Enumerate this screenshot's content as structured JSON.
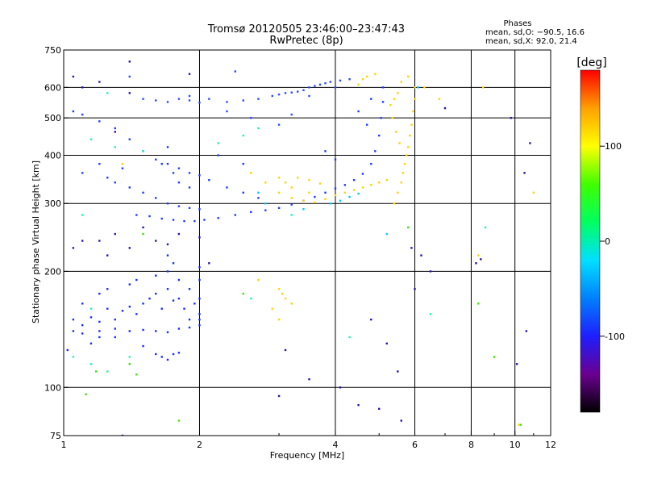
{
  "chart_data": {
    "type": "scatter",
    "title": "Tromsø 20120505 23:46:00–23:47:43",
    "subtitle": "RwPretec (8p)",
    "xlabel": "Frequency [MHz]",
    "ylabel": "Stationary phase Virtual Height [km]",
    "x_scale": "log",
    "y_scale": "log",
    "xlim": [
      1,
      12
    ],
    "ylim": [
      75,
      750
    ],
    "x_ticks": [
      1,
      2,
      4,
      6,
      8,
      10,
      12
    ],
    "y_ticks": [
      75,
      100,
      200,
      300,
      400,
      500,
      600,
      750
    ],
    "x_gridlines": [
      2,
      4,
      6,
      8,
      10
    ],
    "y_gridlines": [
      100,
      200,
      300,
      400,
      500,
      600
    ],
    "grid": true,
    "stats": {
      "header": "Phases",
      "line1": "mean, sd,O: −90.5, 16.6",
      "line2": "mean, sd,X:  92.0, 21.4"
    },
    "colorbar": {
      "label": "[deg]",
      "min": -180,
      "max": 180,
      "ticks": [
        100,
        0,
        -100
      ],
      "colormap": [
        "#000000",
        "#6a0090",
        "#1e1eff",
        "#0080ff",
        "#00e0ff",
        "#00ff60",
        "#40ff00",
        "#ffff00",
        "#ffa000",
        "#ff0000"
      ]
    },
    "series": [
      {
        "values": [
          [
            1.05,
            150
          ],
          [
            1.1,
            145
          ],
          [
            1.15,
            152
          ],
          [
            1.2,
            148
          ],
          [
            1.25,
            160
          ],
          [
            1.3,
            150
          ],
          [
            1.35,
            158
          ],
          [
            1.4,
            162
          ],
          [
            1.45,
            155
          ],
          [
            1.5,
            165
          ],
          [
            1.55,
            170
          ],
          [
            1.6,
            175
          ],
          [
            1.65,
            160
          ],
          [
            1.7,
            180
          ],
          [
            1.75,
            168
          ],
          [
            1.8,
            170
          ],
          [
            1.85,
            160
          ],
          [
            1.9,
            150
          ],
          [
            1.95,
            165
          ],
          [
            2.0,
            155
          ],
          [
            1.1,
            165
          ],
          [
            1.2,
            175
          ],
          [
            1.4,
            185
          ],
          [
            1.6,
            195
          ],
          [
            1.7,
            200
          ],
          [
            1.75,
            210
          ],
          [
            1.8,
            190
          ],
          [
            1.9,
            180
          ],
          [
            2.0,
            170
          ],
          [
            1.2,
            140
          ],
          [
            1.3,
            142
          ],
          [
            1.4,
            140
          ],
          [
            1.5,
            141
          ],
          [
            1.6,
            140
          ],
          [
            1.7,
            139
          ],
          [
            1.8,
            142
          ],
          [
            1.9,
            143
          ],
          [
            2.0,
            145
          ],
          [
            1.6,
            122
          ],
          [
            1.65,
            120
          ],
          [
            1.7,
            118
          ],
          [
            1.75,
            122
          ],
          [
            1.8,
            123
          ],
          [
            2.0,
            205
          ],
          [
            2.0,
            190
          ],
          [
            2.0,
            150
          ],
          [
            1.02,
            125
          ],
          [
            1.15,
            130
          ],
          [
            1.3,
            135
          ],
          [
            1.5,
            128
          ],
          [
            1.7,
            220
          ],
          [
            1.45,
            190
          ],
          [
            1.25,
            180
          ],
          [
            1.1,
            138
          ],
          [
            1.05,
            140
          ],
          [
            1.2,
            135
          ]
        ]
      },
      {
        "values": [
          [
            1.05,
            520
          ],
          [
            1.1,
            510
          ],
          [
            1.2,
            490
          ],
          [
            1.3,
            470
          ],
          [
            1.4,
            440
          ],
          [
            1.5,
            410
          ],
          [
            1.6,
            390
          ],
          [
            1.7,
            380
          ],
          [
            1.8,
            370
          ],
          [
            1.9,
            360
          ],
          [
            2.0,
            355
          ],
          [
            1.3,
            340
          ],
          [
            1.4,
            330
          ],
          [
            1.5,
            320
          ],
          [
            1.6,
            310
          ],
          [
            1.7,
            300
          ],
          [
            1.8,
            295
          ],
          [
            1.9,
            292
          ],
          [
            2.0,
            290
          ],
          [
            1.45,
            280
          ],
          [
            1.55,
            278
          ],
          [
            1.65,
            274
          ],
          [
            1.75,
            272
          ],
          [
            1.85,
            270
          ],
          [
            1.95,
            270
          ],
          [
            2.05,
            272
          ],
          [
            2.2,
            275
          ],
          [
            2.4,
            280
          ],
          [
            2.6,
            285
          ],
          [
            2.8,
            288
          ],
          [
            3.0,
            292
          ],
          [
            3.2,
            298
          ],
          [
            3.4,
            305
          ],
          [
            3.6,
            312
          ],
          [
            3.8,
            320
          ],
          [
            4.0,
            328
          ],
          [
            4.2,
            335
          ],
          [
            4.4,
            345
          ],
          [
            4.6,
            358
          ],
          [
            4.8,
            380
          ],
          [
            4.9,
            410
          ],
          [
            5.0,
            450
          ],
          [
            5.05,
            500
          ],
          [
            5.1,
            550
          ],
          [
            5.1,
            600
          ],
          [
            1.65,
            380
          ],
          [
            1.7,
            420
          ],
          [
            1.75,
            360
          ],
          [
            1.8,
            340
          ],
          [
            1.9,
            330
          ],
          [
            2.1,
            345
          ],
          [
            2.3,
            330
          ],
          [
            2.5,
            320
          ],
          [
            2.7,
            310
          ],
          [
            1.1,
            360
          ],
          [
            1.2,
            380
          ],
          [
            1.25,
            350
          ],
          [
            1.35,
            370
          ],
          [
            2.2,
            400
          ],
          [
            2.5,
            380
          ],
          [
            3.8,
            410
          ],
          [
            4.0,
            390
          ],
          [
            4.5,
            520
          ],
          [
            4.7,
            480
          ],
          [
            4.8,
            560
          ]
        ]
      },
      {
        "values": [
          [
            1.5,
            560
          ],
          [
            1.6,
            555
          ],
          [
            1.7,
            550
          ],
          [
            1.8,
            560
          ],
          [
            1.9,
            555
          ],
          [
            2.0,
            548
          ],
          [
            2.1,
            560
          ],
          [
            2.3,
            550
          ],
          [
            2.5,
            555
          ],
          [
            2.7,
            560
          ],
          [
            2.9,
            570
          ],
          [
            3.0,
            575
          ],
          [
            3.1,
            580
          ],
          [
            3.2,
            582
          ],
          [
            3.3,
            585
          ],
          [
            3.4,
            590
          ],
          [
            3.5,
            600
          ],
          [
            3.6,
            605
          ],
          [
            3.7,
            610
          ],
          [
            3.8,
            615
          ],
          [
            3.9,
            620
          ],
          [
            4.1,
            625
          ],
          [
            4.3,
            630
          ],
          [
            2.4,
            660
          ],
          [
            1.4,
            640
          ],
          [
            2.3,
            520
          ],
          [
            2.6,
            500
          ],
          [
            3.0,
            480
          ],
          [
            3.2,
            510
          ],
          [
            1.9,
            570
          ],
          [
            3.5,
            570
          ],
          [
            4.0,
            600
          ]
        ]
      },
      {
        "values": [
          [
            1.05,
            640
          ],
          [
            1.1,
            600
          ],
          [
            1.2,
            620
          ],
          [
            1.4,
            580
          ],
          [
            1.9,
            650
          ],
          [
            1.4,
            700
          ],
          [
            1.3,
            460
          ],
          [
            1.2,
            240
          ],
          [
            1.3,
            250
          ],
          [
            1.4,
            230
          ],
          [
            1.6,
            240
          ],
          [
            1.7,
            235
          ],
          [
            1.8,
            250
          ],
          [
            2.0,
            245
          ],
          [
            1.1,
            240
          ],
          [
            1.05,
            230
          ],
          [
            1.5,
            260
          ],
          [
            1.25,
            220
          ],
          [
            2.1,
            210
          ],
          [
            4.1,
            100
          ],
          [
            4.5,
            90
          ],
          [
            3.5,
            105
          ],
          [
            5.0,
            88
          ],
          [
            4.8,
            150
          ],
          [
            5.2,
            130
          ],
          [
            5.5,
            110
          ],
          [
            6.0,
            180
          ],
          [
            5.6,
            82
          ],
          [
            3.0,
            95
          ],
          [
            3.1,
            125
          ],
          [
            5.9,
            230
          ],
          [
            6.2,
            220
          ],
          [
            6.5,
            200
          ],
          [
            8.2,
            210
          ],
          [
            10.5,
            360
          ],
          [
            10.6,
            140
          ],
          [
            10.1,
            115
          ],
          [
            8.4,
            215
          ],
          [
            9.8,
            500
          ],
          [
            10.8,
            430
          ],
          [
            7.0,
            530
          ],
          [
            1.35,
            75
          ]
        ]
      },
      {
        "values": [
          [
            5.4,
            300
          ],
          [
            5.5,
            320
          ],
          [
            5.6,
            340
          ],
          [
            5.65,
            360
          ],
          [
            5.7,
            380
          ],
          [
            5.75,
            400
          ],
          [
            5.8,
            420
          ],
          [
            5.85,
            450
          ],
          [
            5.9,
            480
          ],
          [
            5.95,
            520
          ],
          [
            6.0,
            560
          ],
          [
            6.0,
            600
          ],
          [
            5.8,
            640
          ],
          [
            5.6,
            620
          ],
          [
            5.5,
            580
          ],
          [
            5.4,
            560
          ],
          [
            5.3,
            540
          ],
          [
            5.35,
            500
          ],
          [
            5.45,
            460
          ],
          [
            5.55,
            430
          ],
          [
            4.2,
            320
          ],
          [
            4.4,
            325
          ],
          [
            4.6,
            330
          ],
          [
            4.8,
            335
          ],
          [
            5.0,
            340
          ],
          [
            5.2,
            345
          ],
          [
            4.0,
            315
          ],
          [
            3.8,
            308
          ],
          [
            3.6,
            302
          ],
          [
            3.4,
            305
          ],
          [
            3.2,
            310
          ],
          [
            3.0,
            320
          ],
          [
            3.1,
            340
          ],
          [
            3.3,
            350
          ],
          [
            3.5,
            345
          ],
          [
            3.7,
            338
          ],
          [
            3.0,
            350
          ],
          [
            3.2,
            330
          ],
          [
            3.5,
            320
          ],
          [
            2.6,
            360
          ],
          [
            2.8,
            340
          ],
          [
            3.0,
            180
          ],
          [
            3.05,
            175
          ],
          [
            3.1,
            170
          ],
          [
            3.2,
            165
          ],
          [
            2.9,
            160
          ],
          [
            3.0,
            150
          ],
          [
            2.7,
            190
          ],
          [
            4.5,
            610
          ],
          [
            4.7,
            640
          ],
          [
            4.9,
            650
          ],
          [
            4.6,
            630
          ],
          [
            6.3,
            600
          ],
          [
            6.8,
            560
          ],
          [
            8.3,
            220
          ],
          [
            10.2,
            80
          ],
          [
            11.0,
            320
          ],
          [
            1.35,
            380
          ],
          [
            8.5,
            600
          ]
        ]
      },
      {
        "values": [
          [
            3.9,
            300
          ],
          [
            4.1,
            305
          ],
          [
            4.3,
            312
          ],
          [
            4.5,
            318
          ],
          [
            2.8,
            300
          ],
          [
            2.7,
            320
          ],
          [
            3.4,
            290
          ],
          [
            5.2,
            250
          ],
          [
            6.1,
            600
          ]
        ]
      },
      {
        "values": [
          [
            1.15,
            440
          ],
          [
            1.3,
            420
          ],
          [
            1.5,
            410
          ],
          [
            2.2,
            430
          ],
          [
            2.5,
            450
          ],
          [
            2.7,
            470
          ],
          [
            1.25,
            580
          ],
          [
            1.15,
            160
          ],
          [
            1.4,
            120
          ],
          [
            1.15,
            115
          ],
          [
            1.25,
            110
          ],
          [
            3.2,
            280
          ],
          [
            2.6,
            170
          ],
          [
            6.5,
            155
          ],
          [
            8.6,
            260
          ],
          [
            1.1,
            280
          ],
          [
            1.05,
            120
          ],
          [
            4.3,
            135
          ]
        ]
      },
      {
        "values": [
          [
            1.12,
            96
          ],
          [
            1.18,
            110
          ],
          [
            1.4,
            115
          ],
          [
            1.45,
            108
          ],
          [
            1.8,
            82
          ],
          [
            2.5,
            175
          ],
          [
            5.8,
            260
          ],
          [
            8.3,
            165
          ],
          [
            9.0,
            120
          ],
          [
            10.3,
            80
          ],
          [
            1.5,
            250
          ]
        ]
      }
    ],
    "series_colors": [
      "#1a2cff",
      "#1e3cff",
      "#2b4bff",
      "#3010b0",
      "#ffd400",
      "#00c8ff",
      "#20f0c0",
      "#40e010"
    ]
  }
}
